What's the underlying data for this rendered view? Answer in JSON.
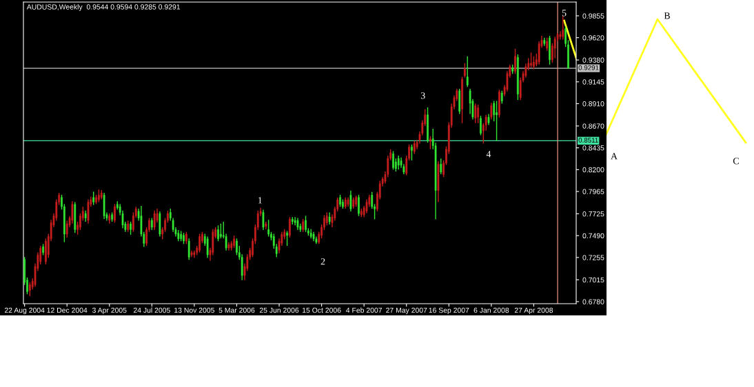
{
  "chart_data": {
    "type": "candlestick",
    "title": "AUDUSD,Weekly  0.9544 0.9594 0.9285 0.9291",
    "x": [
      "2004-08-22",
      "2004-08-29",
      "2004-09-05",
      "2004-09-12",
      "2004-09-19",
      "2004-09-26",
      "2004-10-03",
      "2004-10-10",
      "2004-10-17",
      "2004-10-24",
      "2004-10-31",
      "2004-11-07",
      "2004-11-14",
      "2004-11-21",
      "2004-11-28",
      "2004-12-05",
      "2004-12-12",
      "2004-12-19",
      "2004-12-26",
      "2005-01-02",
      "2005-01-09",
      "2005-01-16",
      "2005-01-23",
      "2005-01-30",
      "2005-02-06",
      "2005-02-13",
      "2005-02-20",
      "2005-02-27",
      "2005-03-06",
      "2005-03-13",
      "2005-03-20",
      "2005-03-27",
      "2005-04-03",
      "2005-04-10",
      "2005-04-17",
      "2005-04-24",
      "2005-05-01",
      "2005-05-08",
      "2005-05-15",
      "2005-05-22",
      "2005-05-29",
      "2005-06-05",
      "2005-06-12",
      "2005-06-19",
      "2005-06-26",
      "2005-07-03",
      "2005-07-10",
      "2005-07-17",
      "2005-07-24",
      "2005-07-31",
      "2005-08-07",
      "2005-08-14",
      "2005-08-21",
      "2005-08-28",
      "2005-09-04",
      "2005-09-11",
      "2005-09-18",
      "2005-09-25",
      "2005-10-02",
      "2005-10-09",
      "2005-10-16",
      "2005-10-23",
      "2005-10-30",
      "2005-11-06",
      "2005-11-13",
      "2005-11-20",
      "2005-11-27",
      "2005-12-04",
      "2005-12-11",
      "2005-12-18",
      "2005-12-25",
      "2006-01-01",
      "2006-01-08",
      "2006-01-15",
      "2006-01-22",
      "2006-01-29",
      "2006-02-05",
      "2006-02-12",
      "2006-02-19",
      "2006-02-26",
      "2006-03-05",
      "2006-03-12",
      "2006-03-19",
      "2006-03-26",
      "2006-04-02",
      "2006-04-09",
      "2006-04-16",
      "2006-04-23",
      "2006-04-30",
      "2006-05-07",
      "2006-05-14",
      "2006-05-21",
      "2006-05-28",
      "2006-06-04",
      "2006-06-11",
      "2006-06-18",
      "2006-06-25",
      "2006-07-02",
      "2006-07-09",
      "2006-07-16",
      "2006-07-23",
      "2006-07-30",
      "2006-08-06",
      "2006-08-13",
      "2006-08-20",
      "2006-08-27",
      "2006-09-03",
      "2006-09-10",
      "2006-09-17",
      "2006-09-24",
      "2006-10-01",
      "2006-10-08",
      "2006-10-15",
      "2006-10-22",
      "2006-10-29",
      "2006-11-05",
      "2006-11-12",
      "2006-11-19",
      "2006-11-26",
      "2006-12-03",
      "2006-12-10",
      "2006-12-17",
      "2006-12-24",
      "2006-12-31",
      "2007-01-07",
      "2007-01-14",
      "2007-01-21",
      "2007-01-28",
      "2007-02-04",
      "2007-02-11",
      "2007-02-18",
      "2007-02-25",
      "2007-03-04",
      "2007-03-11",
      "2007-03-18",
      "2007-03-25",
      "2007-04-01",
      "2007-04-08",
      "2007-04-15",
      "2007-04-22",
      "2007-04-29",
      "2007-05-06",
      "2007-05-13",
      "2007-05-20",
      "2007-05-27",
      "2007-06-03",
      "2007-06-10",
      "2007-06-17",
      "2007-06-24",
      "2007-07-01",
      "2007-07-08",
      "2007-07-15",
      "2007-07-22",
      "2007-07-29",
      "2007-08-05",
      "2007-08-12",
      "2007-08-19",
      "2007-08-26",
      "2007-09-02",
      "2007-09-09",
      "2007-09-16",
      "2007-09-23",
      "2007-09-30",
      "2007-10-07",
      "2007-10-14",
      "2007-10-21",
      "2007-10-28",
      "2007-11-04",
      "2007-11-11",
      "2007-11-18",
      "2007-11-25",
      "2007-12-02",
      "2007-12-09",
      "2007-12-16",
      "2007-12-23",
      "2007-12-30",
      "2008-01-06",
      "2008-01-13",
      "2008-01-20",
      "2008-01-27",
      "2008-02-03",
      "2008-02-10",
      "2008-02-17",
      "2008-02-24",
      "2008-03-02",
      "2008-03-09",
      "2008-03-16",
      "2008-03-23",
      "2008-03-30",
      "2008-04-06",
      "2008-04-13",
      "2008-04-20",
      "2008-04-27",
      "2008-05-04",
      "2008-05-11",
      "2008-05-18",
      "2008-05-25",
      "2008-06-01",
      "2008-06-08",
      "2008-06-15",
      "2008-06-22",
      "2008-06-29",
      "2008-07-06",
      "2008-07-13",
      "2008-07-20",
      "2008-07-27"
    ],
    "ohlc": [
      [
        0.7234,
        0.726,
        0.696,
        0.6987
      ],
      [
        0.7012,
        0.704,
        0.686,
        0.6888
      ],
      [
        0.69,
        0.699,
        0.6839,
        0.6962
      ],
      [
        0.6938,
        0.703,
        0.691,
        0.7
      ],
      [
        0.6962,
        0.719,
        0.694,
        0.716
      ],
      [
        0.7135,
        0.731,
        0.711,
        0.7283
      ],
      [
        0.7209,
        0.738,
        0.718,
        0.7357
      ],
      [
        0.737,
        0.74,
        0.728,
        0.7308
      ],
      [
        0.7209,
        0.746,
        0.718,
        0.7432
      ],
      [
        0.7283,
        0.751,
        0.725,
        0.7481
      ],
      [
        0.7456,
        0.766,
        0.743,
        0.7629
      ],
      [
        0.7604,
        0.773,
        0.758,
        0.7703
      ],
      [
        0.7679,
        0.788,
        0.765,
        0.7851
      ],
      [
        0.7851,
        0.795,
        0.782,
        0.7926
      ],
      [
        0.7901,
        0.793,
        0.777,
        0.7802
      ],
      [
        0.7802,
        0.783,
        0.742,
        0.7506
      ],
      [
        0.7506,
        0.765,
        0.747,
        0.7617
      ],
      [
        0.7604,
        0.77,
        0.758,
        0.7679
      ],
      [
        0.7654,
        0.786,
        0.762,
        0.7827
      ],
      [
        0.7827,
        0.785,
        0.752,
        0.7555
      ],
      [
        0.7555,
        0.764,
        0.75,
        0.7604
      ],
      [
        0.758,
        0.773,
        0.755,
        0.7703
      ],
      [
        0.7679,
        0.78,
        0.765,
        0.7753
      ],
      [
        0.7728,
        0.776,
        0.764,
        0.7679
      ],
      [
        0.7654,
        0.788,
        0.762,
        0.7851
      ],
      [
        0.7827,
        0.791,
        0.78,
        0.7876
      ],
      [
        0.7901,
        0.7963,
        0.782,
        0.7851
      ],
      [
        0.7851,
        0.793,
        0.783,
        0.7901
      ],
      [
        0.7876,
        0.7987,
        0.785,
        0.7926
      ],
      [
        0.7901,
        0.798,
        0.788,
        0.795
      ],
      [
        0.7926,
        0.795,
        0.767,
        0.7703
      ],
      [
        0.7716,
        0.774,
        0.765,
        0.7679
      ],
      [
        0.7654,
        0.773,
        0.762,
        0.7703
      ],
      [
        0.7716,
        0.774,
        0.764,
        0.7666
      ],
      [
        0.7654,
        0.783,
        0.763,
        0.7802
      ],
      [
        0.7827,
        0.786,
        0.777,
        0.779
      ],
      [
        0.7802,
        0.783,
        0.771,
        0.774
      ],
      [
        0.7728,
        0.776,
        0.757,
        0.7604
      ],
      [
        0.7617,
        0.764,
        0.753,
        0.7555
      ],
      [
        0.7555,
        0.765,
        0.753,
        0.7617
      ],
      [
        0.7617,
        0.764,
        0.75,
        0.7555
      ],
      [
        0.7555,
        0.774,
        0.753,
        0.7703
      ],
      [
        0.7703,
        0.78,
        0.768,
        0.7777
      ],
      [
        0.7753,
        0.778,
        0.765,
        0.7679
      ],
      [
        0.7703,
        0.781,
        0.748,
        0.7506
      ],
      [
        0.7506,
        0.753,
        0.737,
        0.7407
      ],
      [
        0.7407,
        0.758,
        0.738,
        0.7555
      ],
      [
        0.7555,
        0.768,
        0.753,
        0.7654
      ],
      [
        0.7654,
        0.768,
        0.755,
        0.758
      ],
      [
        0.758,
        0.776,
        0.755,
        0.7728
      ],
      [
        0.7654,
        0.778,
        0.763,
        0.7728
      ],
      [
        0.7728,
        0.775,
        0.748,
        0.7506
      ],
      [
        0.7506,
        0.758,
        0.745,
        0.7555
      ],
      [
        0.7555,
        0.768,
        0.753,
        0.7654
      ],
      [
        0.7654,
        0.776,
        0.763,
        0.7728
      ],
      [
        0.774,
        0.778,
        0.765,
        0.7679
      ],
      [
        0.7654,
        0.768,
        0.753,
        0.7555
      ],
      [
        0.7555,
        0.758,
        0.748,
        0.7506
      ],
      [
        0.7518,
        0.755,
        0.743,
        0.7456
      ],
      [
        0.7506,
        0.754,
        0.743,
        0.7456
      ],
      [
        0.7493,
        0.752,
        0.74,
        0.7432
      ],
      [
        0.7432,
        0.753,
        0.74,
        0.7506
      ],
      [
        0.7432,
        0.746,
        0.723,
        0.7259
      ],
      [
        0.7283,
        0.733,
        0.726,
        0.7308
      ],
      [
        0.7283,
        0.733,
        0.725,
        0.7308
      ],
      [
        0.7308,
        0.738,
        0.728,
        0.7357
      ],
      [
        0.7333,
        0.751,
        0.731,
        0.7481
      ],
      [
        0.7432,
        0.753,
        0.741,
        0.7506
      ],
      [
        0.7481,
        0.751,
        0.738,
        0.7407
      ],
      [
        0.7456,
        0.748,
        0.725,
        0.7283
      ],
      [
        0.7283,
        0.736,
        0.722,
        0.7333
      ],
      [
        0.7308,
        0.756,
        0.728,
        0.753
      ],
      [
        0.7481,
        0.758,
        0.746,
        0.7555
      ],
      [
        0.7555,
        0.76,
        0.743,
        0.7456
      ],
      [
        0.7506,
        0.762,
        0.746,
        0.7481
      ],
      [
        0.7493,
        0.764,
        0.746,
        0.7481
      ],
      [
        0.7481,
        0.751,
        0.733,
        0.7357
      ],
      [
        0.7357,
        0.742,
        0.733,
        0.7394
      ],
      [
        0.7357,
        0.743,
        0.733,
        0.7407
      ],
      [
        0.7382,
        0.749,
        0.736,
        0.7456
      ],
      [
        0.7432,
        0.746,
        0.728,
        0.7308
      ],
      [
        0.7308,
        0.738,
        0.723,
        0.7259
      ],
      [
        0.7259,
        0.729,
        0.7012,
        0.7061
      ],
      [
        0.7061,
        0.719,
        0.7012,
        0.716
      ],
      [
        0.7135,
        0.729,
        0.711,
        0.7259
      ],
      [
        0.7259,
        0.736,
        0.723,
        0.7333
      ],
      [
        0.7283,
        0.746,
        0.726,
        0.7432
      ],
      [
        0.7432,
        0.761,
        0.74,
        0.758
      ],
      [
        0.758,
        0.776,
        0.755,
        0.7728
      ],
      [
        0.7728,
        0.779,
        0.77,
        0.7753
      ],
      [
        0.774,
        0.777,
        0.755,
        0.758
      ],
      [
        0.7592,
        0.764,
        0.756,
        0.7617
      ],
      [
        0.7555,
        0.766,
        0.748,
        0.7506
      ],
      [
        0.7506,
        0.753,
        0.744,
        0.7469
      ],
      [
        0.7481,
        0.751,
        0.735,
        0.7382
      ],
      [
        0.737,
        0.74,
        0.7259,
        0.7296
      ],
      [
        0.7333,
        0.746,
        0.73,
        0.7432
      ],
      [
        0.7407,
        0.753,
        0.738,
        0.7506
      ],
      [
        0.7481,
        0.756,
        0.745,
        0.753
      ],
      [
        0.7518,
        0.754,
        0.738,
        0.7493
      ],
      [
        0.7493,
        0.769,
        0.747,
        0.7666
      ],
      [
        0.7666,
        0.769,
        0.761,
        0.7641
      ],
      [
        0.7654,
        0.769,
        0.76,
        0.7629
      ],
      [
        0.7654,
        0.768,
        0.755,
        0.758
      ],
      [
        0.7592,
        0.762,
        0.753,
        0.7555
      ],
      [
        0.7555,
        0.767,
        0.753,
        0.7641
      ],
      [
        0.7654,
        0.7703,
        0.753,
        0.7555
      ],
      [
        0.7543,
        0.757,
        0.749,
        0.7518
      ],
      [
        0.7518,
        0.756,
        0.746,
        0.7481
      ],
      [
        0.7506,
        0.753,
        0.743,
        0.7456
      ],
      [
        0.7456,
        0.748,
        0.74,
        0.7419
      ],
      [
        0.7419,
        0.753,
        0.74,
        0.7506
      ],
      [
        0.7493,
        0.761,
        0.746,
        0.758
      ],
      [
        0.758,
        0.771,
        0.755,
        0.7679
      ],
      [
        0.7629,
        0.774,
        0.76,
        0.7703
      ],
      [
        0.7691,
        0.774,
        0.761,
        0.7641
      ],
      [
        0.7629,
        0.772,
        0.758,
        0.7691
      ],
      [
        0.7679,
        0.78,
        0.765,
        0.7777
      ],
      [
        0.7777,
        0.79,
        0.775,
        0.7876
      ],
      [
        0.7901,
        0.793,
        0.78,
        0.7827
      ],
      [
        0.7851,
        0.788,
        0.778,
        0.7802
      ],
      [
        0.7802,
        0.79,
        0.778,
        0.7876
      ],
      [
        0.7827,
        0.79,
        0.78,
        0.7876
      ],
      [
        0.7926,
        0.7975,
        0.775,
        0.7777
      ],
      [
        0.7802,
        0.79,
        0.778,
        0.7876
      ],
      [
        0.7827,
        0.792,
        0.78,
        0.7901
      ],
      [
        0.7901,
        0.793,
        0.77,
        0.7728
      ],
      [
        0.7716,
        0.778,
        0.769,
        0.7753
      ],
      [
        0.7716,
        0.781,
        0.769,
        0.779
      ],
      [
        0.7753,
        0.788,
        0.773,
        0.7851
      ],
      [
        0.7827,
        0.793,
        0.78,
        0.7901
      ],
      [
        0.7926,
        0.796,
        0.778,
        0.7802
      ],
      [
        0.7802,
        0.783,
        0.7666,
        0.7777
      ],
      [
        0.7777,
        0.796,
        0.775,
        0.7938
      ],
      [
        0.7901,
        0.808,
        0.788,
        0.8049
      ],
      [
        0.8049,
        0.812,
        0.802,
        0.8099
      ],
      [
        0.8074,
        0.818,
        0.805,
        0.8148
      ],
      [
        0.8148,
        0.835,
        0.812,
        0.8321
      ],
      [
        0.8321,
        0.842,
        0.83,
        0.8383
      ],
      [
        0.837,
        0.84,
        0.82,
        0.8222
      ],
      [
        0.8284,
        0.832,
        0.818,
        0.821
      ],
      [
        0.8321,
        0.835,
        0.82,
        0.8247
      ],
      [
        0.8296,
        0.833,
        0.822,
        0.8247
      ],
      [
        0.8234,
        0.826,
        0.815,
        0.8173
      ],
      [
        0.816,
        0.835,
        0.814,
        0.8321
      ],
      [
        0.8321,
        0.847,
        0.83,
        0.8444
      ],
      [
        0.8444,
        0.847,
        0.83,
        0.8407
      ],
      [
        0.8395,
        0.851,
        0.837,
        0.8481
      ],
      [
        0.8444,
        0.852,
        0.842,
        0.8494
      ],
      [
        0.8518,
        0.861,
        0.848,
        0.858
      ],
      [
        0.8592,
        0.873,
        0.857,
        0.8704
      ],
      [
        0.8691,
        0.885,
        0.867,
        0.879
      ],
      [
        0.879,
        0.887,
        0.849,
        0.8518
      ],
      [
        0.8506,
        0.856,
        0.842,
        0.8531
      ],
      [
        0.8531,
        0.864,
        0.842,
        0.8457
      ],
      [
        0.8457,
        0.849,
        0.7666,
        0.7975
      ],
      [
        0.7975,
        0.829,
        0.785,
        0.8259
      ],
      [
        0.8259,
        0.832,
        0.815,
        0.8173
      ],
      [
        0.8148,
        0.83,
        0.812,
        0.8271
      ],
      [
        0.8271,
        0.845,
        0.825,
        0.842
      ],
      [
        0.8395,
        0.871,
        0.837,
        0.8679
      ],
      [
        0.8679,
        0.891,
        0.865,
        0.8876
      ],
      [
        0.8876,
        0.9,
        0.885,
        0.8975
      ],
      [
        0.8963,
        0.907,
        0.894,
        0.9049
      ],
      [
        0.9049,
        0.907,
        0.88,
        0.8827
      ],
      [
        0.8852,
        0.92,
        0.87,
        0.9173
      ],
      [
        0.921,
        0.9346,
        0.919,
        0.9284
      ],
      [
        0.9198,
        0.942,
        0.909,
        0.9111
      ],
      [
        0.9049,
        0.907,
        0.88,
        0.8914
      ],
      [
        0.8938,
        0.896,
        0.874,
        0.8765
      ],
      [
        0.8753,
        0.891,
        0.87,
        0.8889
      ],
      [
        0.8765,
        0.89,
        0.87,
        0.8864
      ],
      [
        0.8753,
        0.878,
        0.857,
        0.8592
      ],
      [
        0.8617,
        0.87,
        0.848,
        0.8679
      ],
      [
        0.8679,
        0.879,
        0.862,
        0.8765
      ],
      [
        0.8765,
        0.88,
        0.868,
        0.8704
      ],
      [
        0.8765,
        0.892,
        0.874,
        0.8889
      ],
      [
        0.8914,
        0.894,
        0.872,
        0.879
      ],
      [
        0.8815,
        0.894,
        0.8506,
        0.879
      ],
      [
        0.879,
        0.906,
        0.876,
        0.9037
      ],
      [
        0.9025,
        0.905,
        0.891,
        0.8938
      ],
      [
        0.9013,
        0.911,
        0.899,
        0.9087
      ],
      [
        0.9062,
        0.926,
        0.904,
        0.9235
      ],
      [
        0.921,
        0.933,
        0.919,
        0.9309
      ],
      [
        0.9296,
        0.933,
        0.923,
        0.9259
      ],
      [
        0.9259,
        0.95,
        0.923,
        0.942
      ],
      [
        0.9408,
        0.944,
        0.895,
        0.9013
      ],
      [
        0.8975,
        0.919,
        0.895,
        0.9161
      ],
      [
        0.9161,
        0.926,
        0.914,
        0.9235
      ],
      [
        0.921,
        0.934,
        0.919,
        0.9309
      ],
      [
        0.9296,
        0.94,
        0.927,
        0.9346
      ],
      [
        0.9321,
        0.946,
        0.93,
        0.9346
      ],
      [
        0.9309,
        0.942,
        0.928,
        0.9358
      ],
      [
        0.9333,
        0.945,
        0.931,
        0.9383
      ],
      [
        0.9358,
        0.958,
        0.933,
        0.9556
      ],
      [
        0.9531,
        0.964,
        0.951,
        0.9593
      ],
      [
        0.9593,
        0.962,
        0.953,
        0.9556
      ],
      [
        0.9506,
        0.962,
        0.948,
        0.9581
      ],
      [
        0.9617,
        0.964,
        0.933,
        0.9383
      ],
      [
        0.9383,
        0.956,
        0.935,
        0.9531
      ],
      [
        0.9506,
        0.963,
        0.94,
        0.9605
      ],
      [
        0.9605,
        0.967,
        0.958,
        0.9655
      ],
      [
        0.963,
        0.969,
        0.96,
        0.9655
      ],
      [
        0.963,
        0.9852,
        0.96,
        0.9704
      ],
      [
        0.9716,
        0.974,
        0.952,
        0.9556
      ],
      [
        0.9544,
        0.9594,
        0.9285,
        0.9291
      ]
    ],
    "colors": [
      "#32e632",
      "#32e632",
      "#c81e1e",
      "#c81e1e",
      "#c81e1e",
      "#c81e1e",
      "#c81e1e",
      "#32e632",
      "#c81e1e",
      "#c81e1e",
      "#c81e1e",
      "#c81e1e",
      "#c81e1e",
      "#c81e1e",
      "#32e632",
      "#32e632",
      "#c81e1e",
      "#c81e1e",
      "#c81e1e",
      "#32e632",
      "#c81e1e",
      "#c81e1e",
      "#c81e1e",
      "#32e632",
      "#c81e1e",
      "#c81e1e",
      "#32e632",
      "#c81e1e",
      "#c81e1e",
      "#c81e1e",
      "#32e632",
      "#32e632",
      "#c81e1e",
      "#32e632",
      "#c81e1e",
      "#32e632",
      "#32e632",
      "#32e632",
      "#32e632",
      "#c81e1e",
      "#32e632",
      "#c81e1e",
      "#c81e1e",
      "#32e632",
      "#32e632",
      "#32e632",
      "#c81e1e",
      "#c81e1e",
      "#32e632",
      "#c81e1e",
      "#c81e1e",
      "#32e632",
      "#c81e1e",
      "#c81e1e",
      "#c81e1e",
      "#32e632",
      "#32e632",
      "#32e632",
      "#32e632",
      "#32e632",
      "#32e632",
      "#c81e1e",
      "#32e632",
      "#c81e1e",
      "#c81e1e",
      "#c81e1e",
      "#c81e1e",
      "#c81e1e",
      "#32e632",
      "#32e632",
      "#c81e1e",
      "#c81e1e",
      "#c81e1e",
      "#32e632",
      "#32e632",
      "#32e632",
      "#32e632",
      "#c81e1e",
      "#c81e1e",
      "#c81e1e",
      "#32e632",
      "#32e632",
      "#32e632",
      "#c81e1e",
      "#c81e1e",
      "#c81e1e",
      "#c81e1e",
      "#c81e1e",
      "#c81e1e",
      "#c81e1e",
      "#32e632",
      "#c81e1e",
      "#32e632",
      "#32e632",
      "#32e632",
      "#32e632",
      "#c81e1e",
      "#c81e1e",
      "#c81e1e",
      "#32e632",
      "#c81e1e",
      "#32e632",
      "#32e632",
      "#32e632",
      "#32e632",
      "#c81e1e",
      "#32e632",
      "#32e632",
      "#32e632",
      "#32e632",
      "#32e632",
      "#c81e1e",
      "#c81e1e",
      "#c81e1e",
      "#c81e1e",
      "#32e632",
      "#c81e1e",
      "#c81e1e",
      "#c81e1e",
      "#32e632",
      "#32e632",
      "#c81e1e",
      "#c81e1e",
      "#32e632",
      "#c81e1e",
      "#c81e1e",
      "#32e632",
      "#c81e1e",
      "#c81e1e",
      "#c81e1e",
      "#c81e1e",
      "#32e632",
      "#32e632",
      "#c81e1e",
      "#c81e1e",
      "#c81e1e",
      "#c81e1e",
      "#c81e1e",
      "#c81e1e",
      "#32e632",
      "#32e632",
      "#32e632",
      "#32e632",
      "#32e632",
      "#c81e1e",
      "#c81e1e",
      "#32e632",
      "#c81e1e",
      "#c81e1e",
      "#c81e1e",
      "#c81e1e",
      "#c81e1e",
      "#32e632",
      "#c81e1e",
      "#32e632",
      "#32e632",
      "#c81e1e",
      "#32e632",
      "#c81e1e",
      "#c81e1e",
      "#c81e1e",
      "#c81e1e",
      "#c81e1e",
      "#c81e1e",
      "#32e632",
      "#c81e1e",
      "#c81e1e",
      "#32e632",
      "#32e632",
      "#32e632",
      "#c81e1e",
      "#c81e1e",
      "#32e632",
      "#c81e1e",
      "#c81e1e",
      "#32e632",
      "#c81e1e",
      "#32e632",
      "#32e632",
      "#c81e1e",
      "#32e632",
      "#c81e1e",
      "#c81e1e",
      "#c81e1e",
      "#32e632",
      "#c81e1e",
      "#32e632",
      "#c81e1e",
      "#c81e1e",
      "#c81e1e",
      "#c81e1e",
      "#c81e1e",
      "#c81e1e",
      "#c81e1e",
      "#c81e1e",
      "#c81e1e",
      "#32e632",
      "#c81e1e",
      "#32e632",
      "#c81e1e",
      "#c81e1e",
      "#c81e1e",
      "#c81e1e",
      "#c81e1e",
      "#32e632",
      "#32e632"
    ],
    "xlim": [
      "2004-08-19",
      "2008-08-17"
    ],
    "xticks": [
      {
        "value": "2004-08-22",
        "label": "22 Aug 2004"
      },
      {
        "value": "2004-12-12",
        "label": "12 Dec 2004"
      },
      {
        "value": "2005-04-03",
        "label": "3 Apr 2005"
      },
      {
        "value": "2005-07-24",
        "label": "24 Jul 2005"
      },
      {
        "value": "2005-11-13",
        "label": "13 Nov 2005"
      },
      {
        "value": "2006-03-05",
        "label": "5 Mar 2006"
      },
      {
        "value": "2006-06-25",
        "label": "25 Jun 2006"
      },
      {
        "value": "2006-10-15",
        "label": "15 Oct 2006"
      },
      {
        "value": "2007-02-04",
        "label": "4 Feb 2007"
      },
      {
        "value": "2007-05-27",
        "label": "27 May 2007"
      },
      {
        "value": "2007-09-16",
        "label": "16 Sep 2007"
      },
      {
        "value": "2008-01-06",
        "label": "6 Jan 2008"
      },
      {
        "value": "2008-04-27",
        "label": "27 Apr 2008"
      }
    ],
    "ylim": [
      0.6758,
      1.0003
    ],
    "yticks": [
      {
        "value": 0.9855,
        "label": "0.9855"
      },
      {
        "value": 0.962,
        "label": "0.9620"
      },
      {
        "value": 0.938,
        "label": "0.9380"
      },
      {
        "value": 0.9145,
        "label": "0.9145"
      },
      {
        "value": 0.891,
        "label": "0.8910"
      },
      {
        "value": 0.867,
        "label": "0.8670"
      },
      {
        "value": 0.8435,
        "label": "0.8435"
      },
      {
        "value": 0.82,
        "label": "0.8200"
      },
      {
        "value": 0.7965,
        "label": "0.7965"
      },
      {
        "value": 0.7725,
        "label": "0.7725"
      },
      {
        "value": 0.749,
        "label": "0.7490"
      },
      {
        "value": 0.7255,
        "label": "0.7255"
      },
      {
        "value": 0.7015,
        "label": "0.7015"
      },
      {
        "value": 0.678,
        "label": "0.6780"
      }
    ],
    "grid": false,
    "ref_lines": [
      {
        "axis": "y",
        "value": 0.9291,
        "label": "0.9291",
        "color": "#c0c0c0"
      },
      {
        "axis": "y",
        "value": 0.8511,
        "label": "0.8511",
        "color": "#40e0a0"
      },
      {
        "axis": "x",
        "value": "2008-06-29",
        "color": "#e89080"
      }
    ],
    "annotations": [
      "1",
      "2",
      "3",
      "4",
      "5",
      "A",
      "B",
      "C"
    ]
  }
}
